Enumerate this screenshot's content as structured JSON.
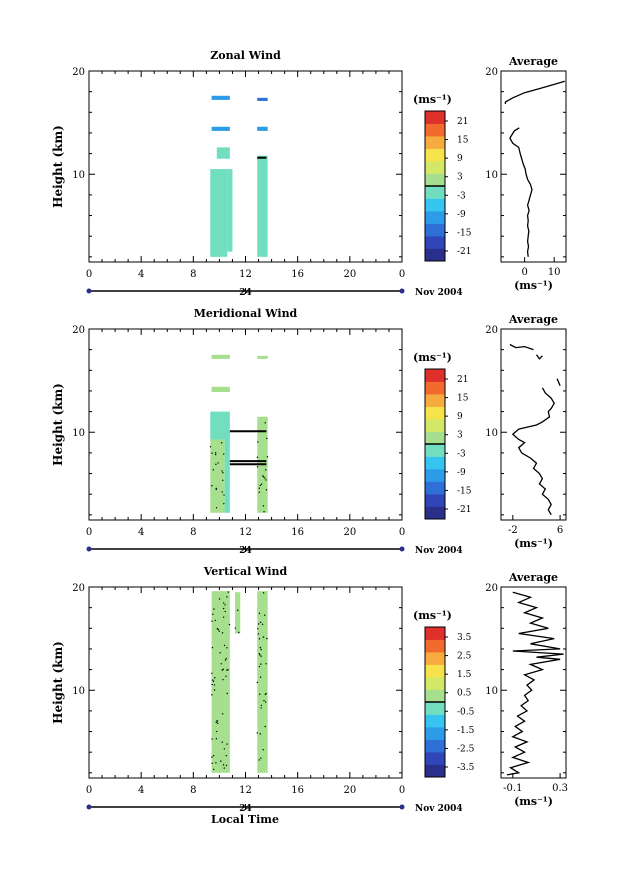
{
  "figure": {
    "x_axis_label": "Local Time",
    "date_label": "Nov 2004",
    "date_day": "24",
    "unit_label": "(ms⁻¹)"
  },
  "chart_data": [
    {
      "type": "heatmap",
      "title": "Zonal Wind",
      "ylabel": "Height (km)",
      "xlabel": "",
      "xlim": [
        0,
        24
      ],
      "xticks": [
        "0",
        "4",
        "8",
        "12",
        "16",
        "20",
        "0"
      ],
      "ylim": [
        1.5,
        20
      ],
      "yticks": [
        10,
        20
      ],
      "colorbar": {
        "label": "(ms⁻¹)",
        "ticks": [
          "21",
          "15",
          "9",
          "3",
          "-3",
          "-9",
          "-15",
          "-21"
        ],
        "range": [
          -24,
          24
        ]
      },
      "data_blocks": [
        {
          "x": [
            9.3,
            10.6
          ],
          "y": [
            2.0,
            10.5
          ],
          "value": -1,
          "dotted": false
        },
        {
          "x": [
            10.6,
            11.0
          ],
          "y": [
            2.5,
            10.5
          ],
          "value": -1,
          "dotted": false
        },
        {
          "x": [
            12.9,
            13.7
          ],
          "y": [
            2.0,
            11.8
          ],
          "value": -1,
          "dotted": false
        },
        {
          "x": [
            9.8,
            10.8
          ],
          "y": [
            11.5,
            12.6
          ],
          "value": -3,
          "dotted": false
        },
        {
          "x": [
            9.4,
            10.8
          ],
          "y": [
            14.2,
            14.6
          ],
          "value": -12,
          "dotted": false
        },
        {
          "x": [
            12.9,
            13.7
          ],
          "y": [
            14.2,
            14.6
          ],
          "value": -12,
          "dotted": false
        },
        {
          "x": [
            9.4,
            10.8
          ],
          "y": [
            17.2,
            17.6
          ],
          "value": -10,
          "dotted": false
        },
        {
          "x": [
            12.9,
            13.7
          ],
          "y": [
            17.1,
            17.4
          ],
          "value": -14,
          "dotted": false
        }
      ],
      "black_segments": [
        {
          "x": [
            12.9,
            13.6
          ],
          "y": 11.6
        }
      ],
      "profile": {
        "title": "Average",
        "xlim": [
          -8,
          14
        ],
        "xticks": [
          "0",
          "10"
        ],
        "xlabel": "(ms⁻¹)",
        "ylim": [
          1.5,
          20
        ],
        "segments": [
          {
            "points": [
              [
                -1.8,
                14.5
              ],
              [
                -3.5,
                14.2
              ],
              [
                -5,
                13.5
              ],
              [
                -4,
                13
              ],
              [
                -2,
                12.6
              ],
              [
                -1.5,
                12
              ],
              [
                -1,
                11.5
              ],
              [
                -0.5,
                11
              ],
              [
                0.2,
                10.5
              ],
              [
                0.5,
                10
              ],
              [
                1,
                9.5
              ],
              [
                2,
                9
              ],
              [
                2.5,
                8.5
              ],
              [
                2,
                8
              ],
              [
                1.5,
                7.5
              ],
              [
                1,
                7
              ],
              [
                1.5,
                6.5
              ],
              [
                1,
                6
              ],
              [
                1.2,
                5.5
              ],
              [
                1,
                5
              ],
              [
                1.4,
                4.5
              ],
              [
                1.2,
                4
              ],
              [
                1,
                3.5
              ],
              [
                1.3,
                3
              ],
              [
                1,
                2.5
              ],
              [
                1.2,
                2
              ]
            ]
          },
          {
            "points": [
              [
                -6.5,
                16.8
              ],
              [
                -6.5,
                17.0
              ],
              [
                -4,
                17.4
              ],
              [
                0,
                17.9
              ],
              [
                5,
                18.3
              ],
              [
                10,
                18.7
              ],
              [
                13.6,
                19.0
              ]
            ]
          }
        ]
      }
    },
    {
      "type": "heatmap",
      "title": "Meridional Wind",
      "ylabel": "Height (km)",
      "xlabel": "",
      "xlim": [
        0,
        24
      ],
      "xticks": [
        "0",
        "4",
        "8",
        "12",
        "16",
        "20",
        "0"
      ],
      "ylim": [
        1.5,
        20
      ],
      "yticks": [
        10,
        20
      ],
      "colorbar": {
        "label": "(ms⁻¹)",
        "ticks": [
          "21",
          "15",
          "9",
          "3",
          "-3",
          "-9",
          "-15",
          "-21"
        ],
        "range": [
          -24,
          24
        ]
      },
      "data_blocks": [
        {
          "x": [
            9.3,
            10.4
          ],
          "y": [
            2.2,
            9.3
          ],
          "value": 0,
          "dotted": true
        },
        {
          "x": [
            10.4,
            10.8
          ],
          "y": [
            2.2,
            10.0
          ],
          "value": -4,
          "dotted": false
        },
        {
          "x": [
            12.9,
            13.7
          ],
          "y": [
            2.2,
            11.5
          ],
          "value": 0,
          "dotted": true
        },
        {
          "x": [
            9.3,
            10.8
          ],
          "y": [
            9.3,
            12.0
          ],
          "value": -1,
          "dotted": false
        },
        {
          "x": [
            9.4,
            10.8
          ],
          "y": [
            13.9,
            14.4
          ],
          "value": 3,
          "dotted": false
        },
        {
          "x": [
            9.4,
            10.8
          ],
          "y": [
            17.1,
            17.5
          ],
          "value": 1,
          "dotted": false
        },
        {
          "x": [
            12.9,
            13.7
          ],
          "y": [
            17.1,
            17.4
          ],
          "value": 0,
          "dotted": false
        }
      ],
      "black_segments": [
        {
          "x": [
            10.8,
            13.6
          ],
          "y": 10.1
        },
        {
          "x": [
            10.8,
            13.6
          ],
          "y": 7.2
        },
        {
          "x": [
            10.8,
            13.6
          ],
          "y": 6.9
        }
      ],
      "profile": {
        "title": "Average",
        "xlim": [
          -4,
          7
        ],
        "xticks": [
          "-2",
          "6"
        ],
        "xlabel": "(ms⁻¹)",
        "ylim": [
          1.5,
          20
        ],
        "segments": [
          {
            "points": [
              [
                3,
                14.3
              ],
              [
                3.5,
                13.8
              ],
              [
                4.5,
                13.3
              ],
              [
                5,
                12.8
              ],
              [
                4.5,
                12.3
              ],
              [
                4,
                12
              ],
              [
                4.2,
                11.5
              ],
              [
                3,
                11
              ],
              [
                2,
                10.7
              ],
              [
                -1,
                10.3
              ],
              [
                -2,
                9.8
              ],
              [
                -1,
                9.3
              ],
              [
                0,
                9
              ],
              [
                -1,
                8.5
              ],
              [
                -0.5,
                8
              ],
              [
                1,
                7.5
              ],
              [
                2,
                7
              ],
              [
                1.5,
                6.5
              ],
              [
                2.5,
                6
              ],
              [
                3,
                5.5
              ],
              [
                2.5,
                5
              ],
              [
                3.5,
                4.5
              ],
              [
                3,
                4
              ],
              [
                4,
                3.5
              ],
              [
                4.5,
                3
              ],
              [
                4,
                2.5
              ],
              [
                4.5,
                2
              ]
            ]
          },
          {
            "points": [
              [
                -2.5,
                18.5
              ],
              [
                -1.5,
                18.2
              ],
              [
                0,
                18.3
              ],
              [
                1.5,
                18.0
              ]
            ]
          },
          {
            "points": [
              [
                2,
                17.5
              ],
              [
                2.5,
                17.1
              ],
              [
                3,
                17.4
              ]
            ]
          },
          {
            "points": [
              [
                5.5,
                15.2
              ],
              [
                6,
                14.5
              ]
            ]
          }
        ]
      }
    },
    {
      "type": "heatmap",
      "title": "Vertical Wind",
      "ylabel": "Height (km)",
      "xlabel": "Local Time",
      "xlim": [
        0,
        24
      ],
      "xticks": [
        "0",
        "4",
        "8",
        "12",
        "16",
        "20",
        "0"
      ],
      "ylim": [
        1.5,
        20
      ],
      "yticks": [
        10,
        20
      ],
      "colorbar": {
        "label": "(ms⁻¹)",
        "ticks": [
          "3.5",
          "2.5",
          "1.5",
          "0.5",
          "-0.5",
          "-1.5",
          "-2.5",
          "-3.5"
        ],
        "range": [
          -4,
          4
        ]
      },
      "data_blocks": [
        {
          "x": [
            9.4,
            10.8
          ],
          "y": [
            2.0,
            19.6
          ],
          "value": 0.2,
          "dotted": true
        },
        {
          "x": [
            11.2,
            11.6
          ],
          "y": [
            15.5,
            19.5
          ],
          "value": 0.2,
          "dotted": true
        },
        {
          "x": [
            12.9,
            13.7
          ],
          "y": [
            2.0,
            19.6
          ],
          "value": 0.1,
          "dotted": true
        }
      ],
      "black_segments": [],
      "profile": {
        "title": "Average",
        "xlim": [
          -0.2,
          0.35
        ],
        "xticks": [
          "-0.1",
          "0.3"
        ],
        "xlabel": "(ms⁻¹)",
        "ylim": [
          1.5,
          20
        ],
        "segments": [
          {
            "points": [
              [
                -0.1,
                19.5
              ],
              [
                0.05,
                19
              ],
              [
                -0.05,
                18.5
              ],
              [
                0.1,
                18
              ],
              [
                0,
                17.5
              ],
              [
                0.15,
                17
              ],
              [
                0.05,
                16.5
              ],
              [
                0.2,
                16
              ],
              [
                -0.05,
                15.5
              ],
              [
                0.25,
                15
              ],
              [
                0.05,
                14.5
              ],
              [
                0.3,
                14
              ],
              [
                -0.1,
                13.8
              ],
              [
                0.33,
                13.5
              ],
              [
                0.1,
                13.2
              ],
              [
                0.3,
                13
              ],
              [
                0.05,
                12.5
              ],
              [
                0.15,
                12
              ],
              [
                0,
                11.5
              ],
              [
                0.08,
                11
              ],
              [
                0.02,
                10.5
              ],
              [
                0.06,
                10
              ],
              [
                0,
                9.5
              ],
              [
                0.03,
                9
              ],
              [
                -0.03,
                8.5
              ],
              [
                0.02,
                8
              ],
              [
                -0.06,
                7.5
              ],
              [
                0,
                7
              ],
              [
                -0.08,
                6.5
              ],
              [
                -0.02,
                6
              ],
              [
                -0.1,
                5.5
              ],
              [
                0.02,
                5
              ],
              [
                -0.08,
                4.5
              ],
              [
                0,
                4
              ],
              [
                -0.1,
                3.5
              ],
              [
                0.03,
                3
              ],
              [
                -0.12,
                2.5
              ],
              [
                -0.05,
                2
              ],
              [
                -0.15,
                1.8
              ]
            ]
          }
        ]
      }
    }
  ]
}
